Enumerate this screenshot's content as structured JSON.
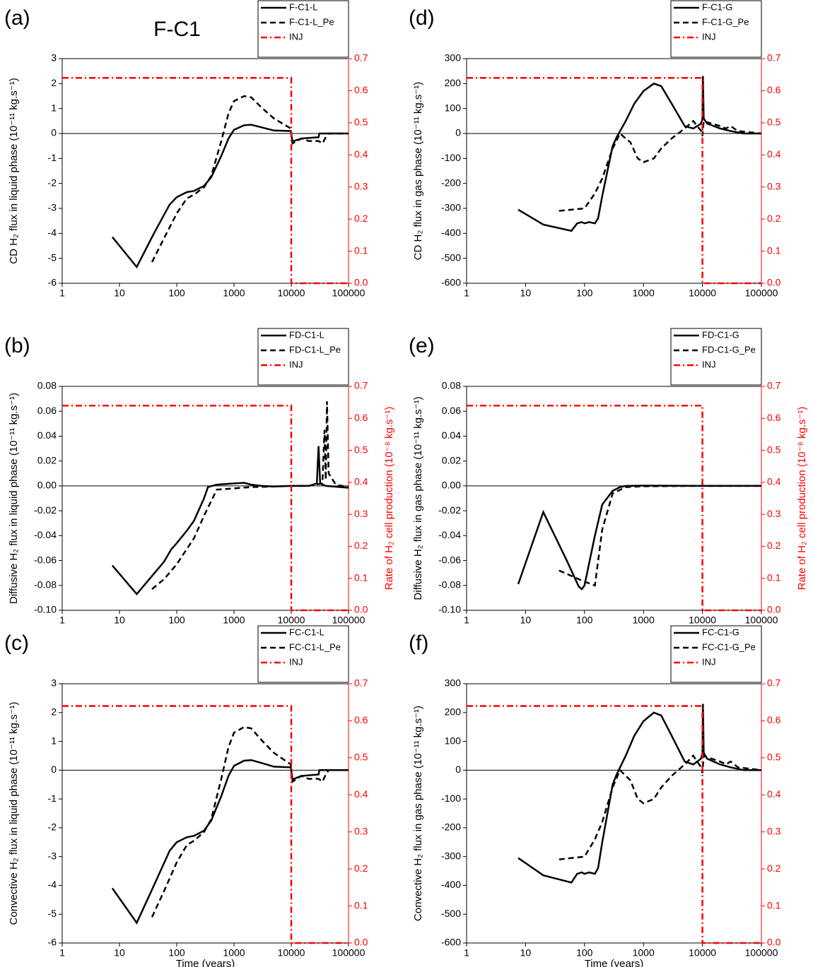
{
  "chart_data": [
    {
      "type": "line",
      "panel_label": "(a)",
      "annotation": "F-C1",
      "ylabel": "CD H₂ flux in liquid phase (10⁻¹¹ kg.s⁻¹)",
      "xscale": "log",
      "xlim": [
        1,
        100000
      ],
      "xticks": [
        1,
        10,
        100,
        1000,
        10000,
        100000
      ],
      "ylim": [
        -6,
        3
      ],
      "yticks": [
        -6,
        -5,
        -4,
        -3,
        -2,
        -1,
        0,
        1,
        2,
        3
      ],
      "y2lim": [
        0,
        0.7
      ],
      "y2ticks": [
        {
          "value": 0,
          "label": "0.0"
        },
        0.1,
        0.2,
        0.3,
        0.4,
        0.5,
        0.6,
        0.7
      ],
      "reference_line": 0,
      "legend": "top-right",
      "series": [
        {
          "name": "F-C1-L",
          "color": "#000000",
          "style": "solid",
          "x": [
            7.5,
            20,
            40,
            75,
            100,
            150,
            200,
            300,
            400,
            600,
            800,
            1000,
            1500,
            2000,
            3000,
            5000,
            9800,
            10500,
            15000,
            30000,
            31000,
            50000,
            100000
          ],
          "values": [
            -4.15,
            -5.35,
            -4.0,
            -2.85,
            -2.55,
            -2.35,
            -2.3,
            -2.1,
            -1.75,
            -0.9,
            -0.2,
            0.15,
            0.33,
            0.35,
            0.25,
            0.12,
            0.1,
            -0.32,
            -0.2,
            -0.15,
            0,
            0,
            0
          ]
        },
        {
          "name": "F-C1-L_Pe",
          "color": "#000000",
          "style": "dash",
          "x": [
            37,
            60,
            100,
            150,
            200,
            300,
            400,
            600,
            800,
            1000,
            1500,
            2000,
            3000,
            5000,
            9800,
            10500,
            15000,
            20000,
            30000,
            35000,
            40000,
            45000,
            100000
          ],
          "values": [
            -5.15,
            -4.2,
            -3.2,
            -2.6,
            -2.45,
            -2.15,
            -1.7,
            -0.3,
            0.8,
            1.3,
            1.5,
            1.45,
            1.05,
            0.6,
            0.2,
            -0.4,
            -0.2,
            -0.3,
            -0.3,
            -0.4,
            -0.15,
            0,
            0
          ]
        },
        {
          "name": "INJ",
          "color": "#ff0000",
          "style": "dashdot",
          "axis": "y2",
          "x": [
            1,
            10000,
            10000,
            100000
          ],
          "values": [
            0.64,
            0.64,
            0,
            0
          ]
        }
      ]
    },
    {
      "type": "line",
      "panel_label": "(b)",
      "ylabel": "Diffusive H₂ flux in liquid phase (10⁻¹¹ kg.s⁻¹)",
      "y2label": "Rate of H₂ cell production (10⁻⁸ kg.s⁻¹)",
      "xscale": "log",
      "xlim": [
        1,
        100000
      ],
      "xticks": [
        1,
        10,
        100,
        1000,
        10000,
        100000
      ],
      "ylim": [
        -0.1,
        0.08
      ],
      "yticks": [
        {
          "value": -0.1,
          "label": "-0.10"
        },
        -0.08,
        -0.06,
        -0.04,
        -0.02,
        {
          "value": 0,
          "label": "0.00"
        },
        0.02,
        0.04,
        0.06,
        0.08
      ],
      "y2lim": [
        0,
        0.7
      ],
      "y2ticks": [
        {
          "value": 0,
          "label": "0.0"
        },
        0.1,
        0.2,
        0.3,
        0.4,
        0.5,
        0.6,
        0.7
      ],
      "reference_line": 0,
      "legend": "top-right",
      "series": [
        {
          "name": "FD-C1-L",
          "color": "#000000",
          "style": "solid",
          "x": [
            7.5,
            20,
            60,
            80,
            100,
            150,
            200,
            300,
            350,
            500,
            1000,
            1500,
            2000,
            3000,
            5000,
            10000,
            20000,
            28000,
            30000,
            32000,
            40000,
            100000
          ],
          "values": [
            -0.064,
            -0.087,
            -0.061,
            -0.051,
            -0.046,
            -0.036,
            -0.028,
            -0.01,
            -0.001,
            0.001,
            0.002,
            0.0025,
            0.001,
            0,
            -0.0005,
            0,
            0,
            0.002,
            0.032,
            0.002,
            0,
            -0.0015
          ]
        },
        {
          "name": "FD-C1-L_Pe",
          "color": "#000000",
          "style": "dash",
          "x": [
            37,
            60,
            100,
            200,
            300,
            500,
            1000,
            2000,
            5000,
            10000,
            20000,
            35000,
            38000,
            40000,
            42000,
            45000,
            60000,
            100000
          ],
          "values": [
            -0.083,
            -0.075,
            -0.063,
            -0.042,
            -0.024,
            -0.003,
            -0.002,
            -0.001,
            -0.0005,
            0,
            0,
            0.002,
            0.045,
            0.005,
            0.068,
            0.01,
            0.001,
            -0.001
          ]
        },
        {
          "name": "INJ",
          "color": "#ff0000",
          "style": "dashdot",
          "axis": "y2",
          "x": [
            1,
            10000,
            10000,
            100000
          ],
          "values": [
            0.64,
            0.64,
            0,
            0
          ]
        }
      ]
    },
    {
      "type": "line",
      "panel_label": "(c)",
      "ylabel": "Convective H₂ flux in liquid phase (10⁻¹¹ kg.s⁻¹)",
      "xlabel": "Time (years)",
      "xscale": "log",
      "xlim": [
        1,
        100000
      ],
      "xticks": [
        1,
        10,
        100,
        1000,
        10000,
        100000
      ],
      "ylim": [
        -6,
        3
      ],
      "yticks": [
        -6,
        -5,
        -4,
        -3,
        -2,
        -1,
        0,
        1,
        2,
        3
      ],
      "y2lim": [
        0,
        0.7
      ],
      "y2ticks": [
        {
          "value": 0,
          "label": "0.0"
        },
        0.1,
        0.2,
        0.3,
        0.4,
        0.5,
        0.6,
        0.7
      ],
      "reference_line": 0,
      "legend": "top-right",
      "series": [
        {
          "name": "FC-C1-L",
          "color": "#000000",
          "style": "solid",
          "x": [
            7.5,
            20,
            40,
            75,
            100,
            150,
            200,
            300,
            400,
            600,
            800,
            1000,
            1500,
            2000,
            3000,
            5000,
            9800,
            10500,
            15000,
            30000,
            31000,
            50000,
            100000
          ],
          "values": [
            -4.1,
            -5.3,
            -4.0,
            -2.8,
            -2.5,
            -2.33,
            -2.28,
            -2.1,
            -1.75,
            -0.9,
            -0.2,
            0.15,
            0.33,
            0.35,
            0.25,
            0.12,
            0.1,
            -0.32,
            -0.2,
            -0.15,
            0,
            0,
            0
          ]
        },
        {
          "name": "FC-C1-L_Pe",
          "color": "#000000",
          "style": "dash",
          "x": [
            37,
            60,
            100,
            150,
            200,
            300,
            400,
            600,
            800,
            1000,
            1500,
            2000,
            3000,
            5000,
            9800,
            10500,
            15000,
            20000,
            30000,
            35000,
            40000,
            45000,
            100000
          ],
          "values": [
            -5.1,
            -4.2,
            -3.2,
            -2.6,
            -2.45,
            -2.15,
            -1.7,
            -0.3,
            0.8,
            1.3,
            1.5,
            1.45,
            1.05,
            0.6,
            0.2,
            -0.4,
            -0.2,
            -0.3,
            -0.3,
            -0.4,
            -0.15,
            0,
            0
          ]
        },
        {
          "name": "INJ",
          "color": "#ff0000",
          "style": "dashdot",
          "axis": "y2",
          "x": [
            1,
            10000,
            10000,
            100000
          ],
          "values": [
            0.64,
            0.64,
            0,
            0
          ]
        }
      ]
    },
    {
      "type": "line",
      "panel_label": "(d)",
      "ylabel": "CD H₂ flux in gas phase (10⁻¹¹ kg.s⁻¹)",
      "xscale": "log",
      "xlim": [
        1,
        100000
      ],
      "xticks": [
        1,
        10,
        100,
        1000,
        10000,
        100000
      ],
      "ylim": [
        -600,
        300
      ],
      "yticks": [
        -600,
        -500,
        -400,
        -300,
        -200,
        -100,
        0,
        100,
        200,
        300
      ],
      "y2lim": [
        0,
        0.7
      ],
      "y2ticks": [
        {
          "value": 0,
          "label": "0.0"
        },
        0.1,
        0.2,
        0.3,
        0.4,
        0.5,
        0.6,
        0.7
      ],
      "reference_line": 0,
      "legend": "top-right",
      "series": [
        {
          "name": "F-C1-G",
          "color": "#000000",
          "style": "solid",
          "x": [
            7.5,
            20,
            60,
            75,
            90,
            100,
            120,
            150,
            170,
            200,
            300,
            350,
            500,
            700,
            1000,
            1500,
            2000,
            3000,
            5000,
            7000,
            9500,
            10000,
            10200,
            10500,
            12000,
            20000,
            30000,
            50000,
            100000
          ],
          "values": [
            -305,
            -365,
            -390,
            -360,
            -355,
            -360,
            -355,
            -360,
            -340,
            -250,
            -50,
            -15,
            50,
            120,
            170,
            200,
            190,
            120,
            30,
            20,
            40,
            60,
            230,
            60,
            40,
            20,
            10,
            0,
            0
          ]
        },
        {
          "name": "F-C1-G_Pe",
          "color": "#000000",
          "style": "dash",
          "x": [
            37,
            100,
            150,
            200,
            300,
            400,
            500,
            600,
            800,
            1000,
            1500,
            2000,
            3000,
            5000,
            7000,
            9500,
            10000,
            10500,
            12000,
            20000,
            25000,
            30000,
            40000,
            100000
          ],
          "values": [
            -310,
            -300,
            -240,
            -180,
            -60,
            0,
            -20,
            -35,
            -100,
            -115,
            -100,
            -60,
            -20,
            20,
            50,
            10,
            -10,
            50,
            45,
            30,
            20,
            30,
            10,
            0
          ]
        },
        {
          "name": "INJ",
          "color": "#ff0000",
          "style": "dashdot",
          "axis": "y2",
          "x": [
            1,
            10000,
            10000,
            100000
          ],
          "values": [
            0.64,
            0.64,
            0,
            0
          ]
        }
      ]
    },
    {
      "type": "line",
      "panel_label": "(e)",
      "ylabel": "Diffusive H₂ flux in gas phase (10⁻¹¹ kg.s⁻¹)",
      "y2label": "Rate of H₂ cell production (10⁻⁸ kg.s⁻¹)",
      "xscale": "log",
      "xlim": [
        1,
        100000
      ],
      "xticks": [
        1,
        10,
        100,
        1000,
        10000,
        100000
      ],
      "ylim": [
        -0.1,
        0.08
      ],
      "yticks": [
        {
          "value": -0.1,
          "label": "-0.10"
        },
        -0.08,
        -0.06,
        -0.04,
        -0.02,
        {
          "value": 0,
          "label": "0.00"
        },
        0.02,
        0.04,
        0.06,
        0.08
      ],
      "y2lim": [
        0,
        0.7
      ],
      "y2ticks": [
        {
          "value": 0,
          "label": "0.0"
        },
        0.1,
        0.2,
        0.3,
        0.4,
        0.5,
        0.6,
        0.7
      ],
      "reference_line": 0,
      "legend": "top-right",
      "series": [
        {
          "name": "FD-C1-G",
          "color": "#000000",
          "style": "solid",
          "x": [
            7.5,
            20,
            50,
            80,
            90,
            100,
            150,
            200,
            300,
            400,
            500,
            1000,
            10000,
            100000
          ],
          "values": [
            -0.079,
            -0.021,
            -0.06,
            -0.081,
            -0.083,
            -0.08,
            -0.04,
            -0.015,
            -0.004,
            -0.001,
            0,
            0.0002,
            0,
            0
          ]
        },
        {
          "name": "FD-C1-G_Pe",
          "color": "#000000",
          "style": "dash",
          "x": [
            37,
            80,
            100,
            150,
            200,
            300,
            500,
            1000,
            10000,
            100000
          ],
          "values": [
            -0.068,
            -0.075,
            -0.077,
            -0.08,
            -0.035,
            -0.006,
            -0.001,
            -0.0003,
            0,
            0
          ]
        },
        {
          "name": "INJ",
          "color": "#ff0000",
          "style": "dashdot",
          "axis": "y2",
          "x": [
            1,
            10000,
            10000,
            100000
          ],
          "values": [
            0.64,
            0.64,
            0,
            0
          ]
        }
      ]
    },
    {
      "type": "line",
      "panel_label": "(f)",
      "ylabel": "Convective H₂ flux in gas phase (10⁻¹¹ kg.s⁻¹)",
      "xlabel": "Time (years)",
      "xscale": "log",
      "xlim": [
        1,
        100000
      ],
      "xticks": [
        1,
        10,
        100,
        1000,
        10000,
        100000
      ],
      "ylim": [
        -600,
        300
      ],
      "yticks": [
        -600,
        -500,
        -400,
        -300,
        -200,
        -100,
        0,
        100,
        200,
        300
      ],
      "y2lim": [
        0,
        0.7
      ],
      "y2ticks": [
        {
          "value": 0,
          "label": "0.0"
        },
        0.1,
        0.2,
        0.3,
        0.4,
        0.5,
        0.6,
        0.7
      ],
      "reference_line": 0,
      "legend": "top-right",
      "series": [
        {
          "name": "FC-C1-G",
          "color": "#000000",
          "style": "solid",
          "x": [
            7.5,
            20,
            60,
            75,
            90,
            100,
            120,
            150,
            170,
            200,
            300,
            350,
            500,
            700,
            1000,
            1500,
            2000,
            3000,
            5000,
            7000,
            9500,
            10000,
            10200,
            10500,
            12000,
            20000,
            30000,
            50000,
            100000
          ],
          "values": [
            -305,
            -365,
            -390,
            -360,
            -355,
            -360,
            -355,
            -360,
            -340,
            -250,
            -50,
            -15,
            50,
            120,
            170,
            200,
            190,
            120,
            30,
            20,
            40,
            60,
            230,
            60,
            40,
            20,
            10,
            0,
            0
          ]
        },
        {
          "name": "FC-C1-G_Pe",
          "color": "#000000",
          "style": "dash",
          "x": [
            37,
            100,
            150,
            200,
            300,
            400,
            500,
            600,
            800,
            1000,
            1500,
            2000,
            3000,
            5000,
            7000,
            9500,
            10000,
            10500,
            12000,
            20000,
            25000,
            30000,
            40000,
            100000
          ],
          "values": [
            -310,
            -300,
            -240,
            -180,
            -60,
            0,
            -20,
            -35,
            -100,
            -115,
            -100,
            -60,
            -20,
            20,
            50,
            10,
            -10,
            50,
            45,
            30,
            20,
            30,
            10,
            0
          ]
        },
        {
          "name": "INJ",
          "color": "#ff0000",
          "style": "dashdot",
          "axis": "y2",
          "x": [
            1,
            10000,
            10000,
            100000
          ],
          "values": [
            0.64,
            0.64,
            0,
            0
          ]
        }
      ]
    }
  ]
}
